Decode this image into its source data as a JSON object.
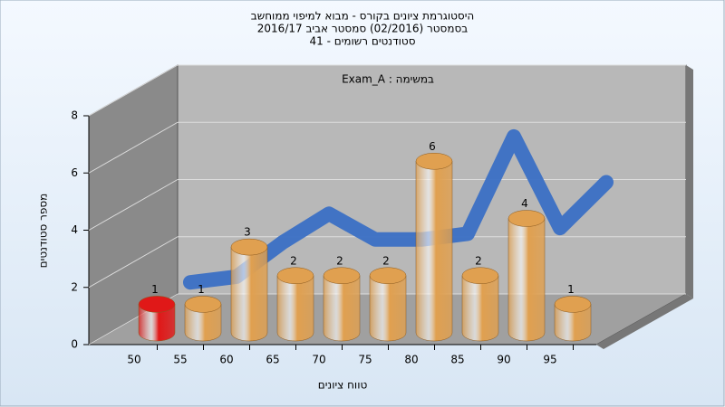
{
  "chart_data": {
    "type": "bar3d",
    "title": [
      "היסטוגרמת ציונים בקורס - מבוא למיפוי ממוחשב",
      "בסמסטר  (02/2016)  סמסטר אביב 2016/17",
      "סטודנטים רשומים - 41"
    ],
    "annotation": "Exam_A : במשימה",
    "x_label": "טווח ציונים",
    "y_label": "מספר סטודנטים",
    "categories": [
      "50",
      "55",
      "60",
      "65",
      "70",
      "75",
      "80",
      "85",
      "90",
      "95"
    ],
    "series": [
      {
        "color": "#e0a050",
        "colors": [
          "#e01818",
          "#e0a050",
          "#e0a050",
          "#e0a050",
          "#e0a050",
          "#e0a050",
          "#e0a050",
          "#e0a050",
          "#e0a050",
          "#e0a050"
        ],
        "values": [
          1,
          1,
          3,
          2,
          2,
          2,
          6,
          2,
          4,
          1
        ]
      },
      {
        "color": "#3a6fc4",
        "values": [
          1.1,
          1.3,
          2.5,
          3.5,
          2.6,
          2.6,
          2.8,
          6.2,
          3.0,
          4.6
        ]
      }
    ],
    "ylim": [
      0,
      8
    ],
    "yticks": [
      0,
      2,
      4,
      6,
      8
    ],
    "grid": true
  }
}
